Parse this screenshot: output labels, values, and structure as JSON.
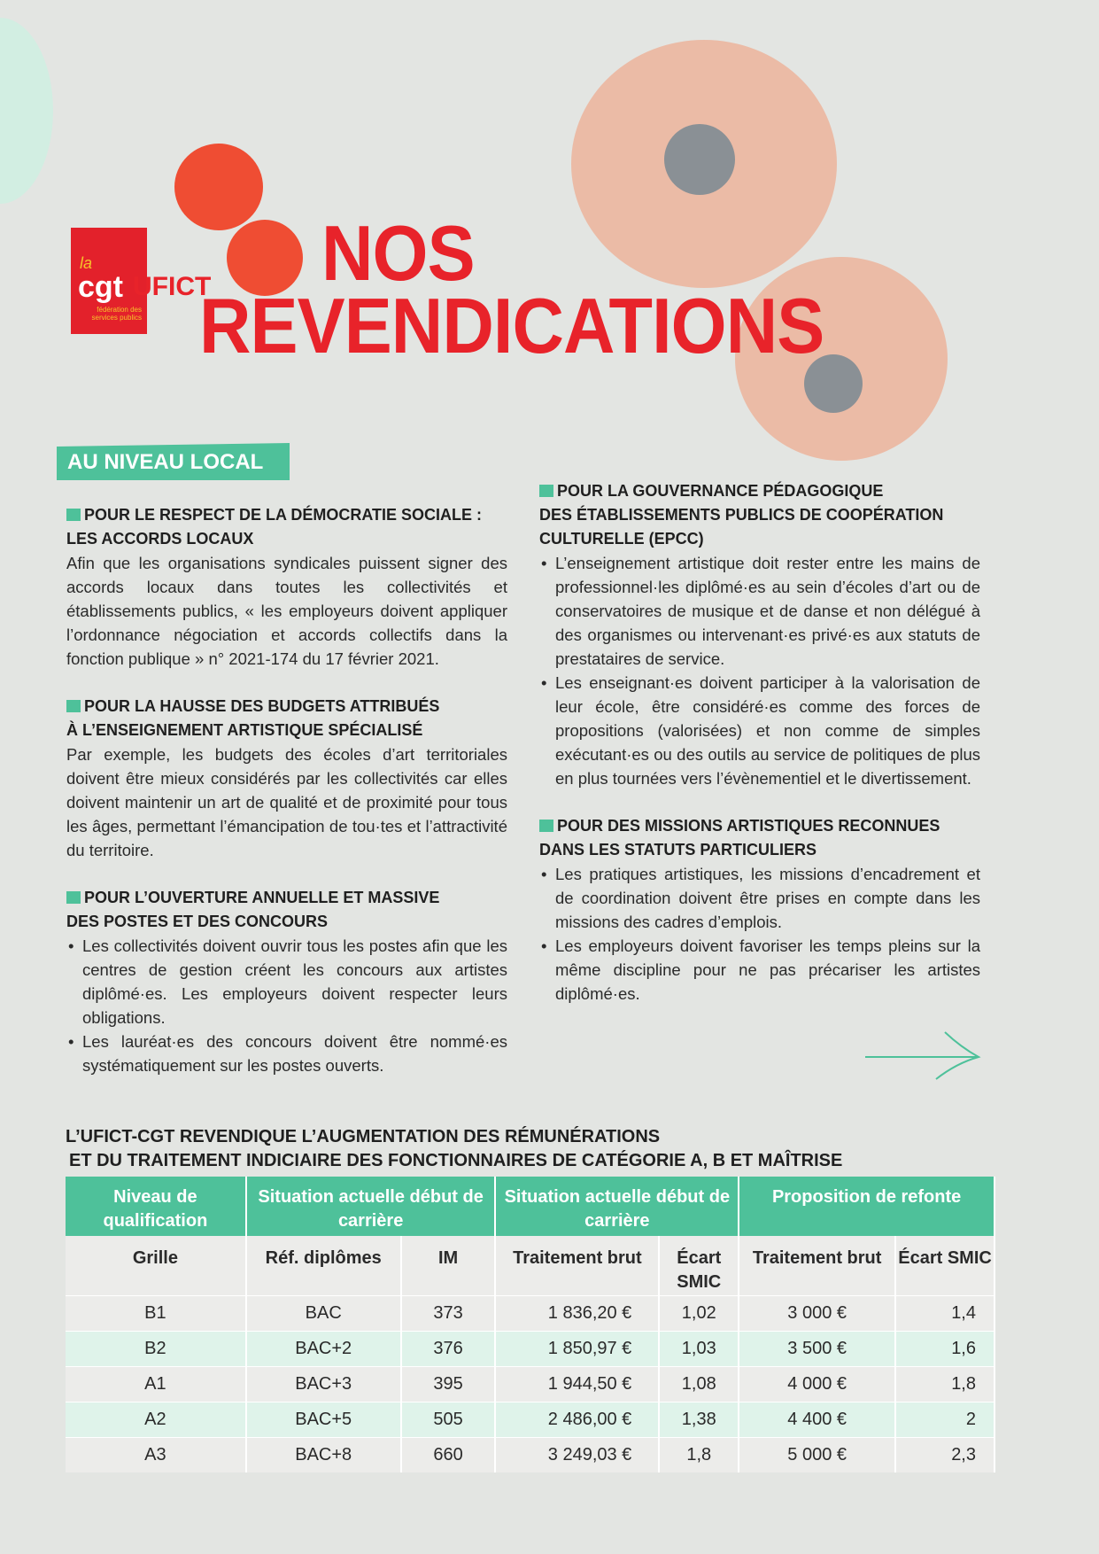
{
  "logo": {
    "la": "la",
    "cgt": "cgt",
    "federation": "fédération des services publics",
    "ufict": "UFICT"
  },
  "title": {
    "line1": "NOS",
    "line2": "REVENDICATIONS"
  },
  "section": "AU NIVEAU LOCAL",
  "left": [
    {
      "heading": [
        "POUR LE RESPECT DE LA DÉMOCRATIE SOCIALE :",
        "LES ACCORDS LOCAUX"
      ],
      "text": "Afin que les organisations syndicales puissent signer des accords locaux dans toutes les collectivités et établissements publics, « les employeurs doivent appliquer l’ordonnance négociation et accords collectifs dans la fonction publique » n° 2021-174 du 17 février 2021."
    },
    {
      "heading": [
        "POUR LA HAUSSE DES BUDGETS ATTRIBUÉS",
        "À L’ENSEIGNEMENT ARTISTIQUE SPÉCIALISÉ"
      ],
      "text": "Par exemple, les budgets des écoles d’art territoriales doivent être mieux considérés par les collectivités car elles doivent maintenir un art de qualité et de proximité pour tous les âges, permettant l’émancipation de tou·tes et l’attractivité du territoire."
    },
    {
      "heading": [
        "POUR L’OUVERTURE ANNUELLE ET MASSIVE",
        "DES POSTES ET DES CONCOURS"
      ],
      "bullets": [
        "Les collectivités doivent ouvrir tous les postes afin que les centres de gestion créent les concours aux artistes diplômé·es. Les employeurs doivent respecter leurs obligations.",
        "Les lauréat·es des concours doivent être nommé·es systématiquement sur les postes ouverts."
      ]
    }
  ],
  "right": [
    {
      "heading": [
        "POUR LA GOUVERNANCE PÉDAGOGIQUE",
        "DES ÉTABLISSEMENTS PUBLICS DE COOPÉRATION",
        "CULTURELLE (EPCC)"
      ],
      "bullets": [
        "L’enseignement artistique doit rester entre les mains de professionnel·les diplômé·es au sein d’écoles d’art ou de conservatoires de musique et de danse et non délégué à des organismes ou intervenant·es privé·es aux statuts de prestataires de service.",
        "Les enseignant·es doivent participer à la valorisation de leur école, être considéré·es comme des forces de propositions (valorisées) et non comme de simples exécutant·es ou des outils au service de politiques de plus en plus tournées vers l’évènementiel et le divertissement."
      ]
    },
    {
      "heading": [
        "POUR DES MISSIONS ARTISTIQUES RECONNUES",
        "DANS LES STATUTS PARTICULIERS"
      ],
      "bullets": [
        "Les pratiques artistiques, les missions d’encadrement et de coordination doivent être prises en compte dans les missions des cadres d’emplois.",
        "Les employeurs doivent favoriser les temps pleins sur la même discipline pour ne pas précariser les artistes diplômé·es."
      ]
    }
  ],
  "table": {
    "title": [
      "L’UFICT-CGT REVENDIQUE L’AUGMENTATION DES RÉMUNÉRATIONS",
      "ET DU TRAITEMENT INDICIAIRE DES FONCTIONNAIRES DE CATÉGORIE A, B ET MAÎTRISE"
    ],
    "groups": [
      "Niveau de qualification",
      "Situation actuelle début de carrière",
      "Situation actuelle début de carrière",
      "Proposition de refonte"
    ],
    "columns": [
      "Grille",
      "Réf. diplômes",
      "IM",
      "Traitement brut",
      "Écart SMIC",
      "Traitement brut",
      "Écart SMIC"
    ],
    "rows": [
      [
        "B1",
        "BAC",
        "373",
        "1 836,20 €",
        "1,02",
        "3 000 €",
        "1,4"
      ],
      [
        "B2",
        "BAC+2",
        "376",
        "1 850,97 €",
        "1,03",
        "3 500 €",
        "1,6"
      ],
      [
        "A1",
        "BAC+3",
        "395",
        "1 944,50 €",
        "1,08",
        "4 000 €",
        "1,8"
      ],
      [
        "A2",
        "BAC+5",
        "505",
        "2 486,00 €",
        "1,38",
        "4 400 €",
        "2"
      ],
      [
        "A3",
        "BAC+8",
        "660",
        "3 249,03 €",
        "1,8",
        "5 000 €",
        "2,3"
      ]
    ]
  },
  "colors": {
    "red": "#e8232a",
    "green": "#4ec19a",
    "poppy_light": "#ebbba6"
  }
}
